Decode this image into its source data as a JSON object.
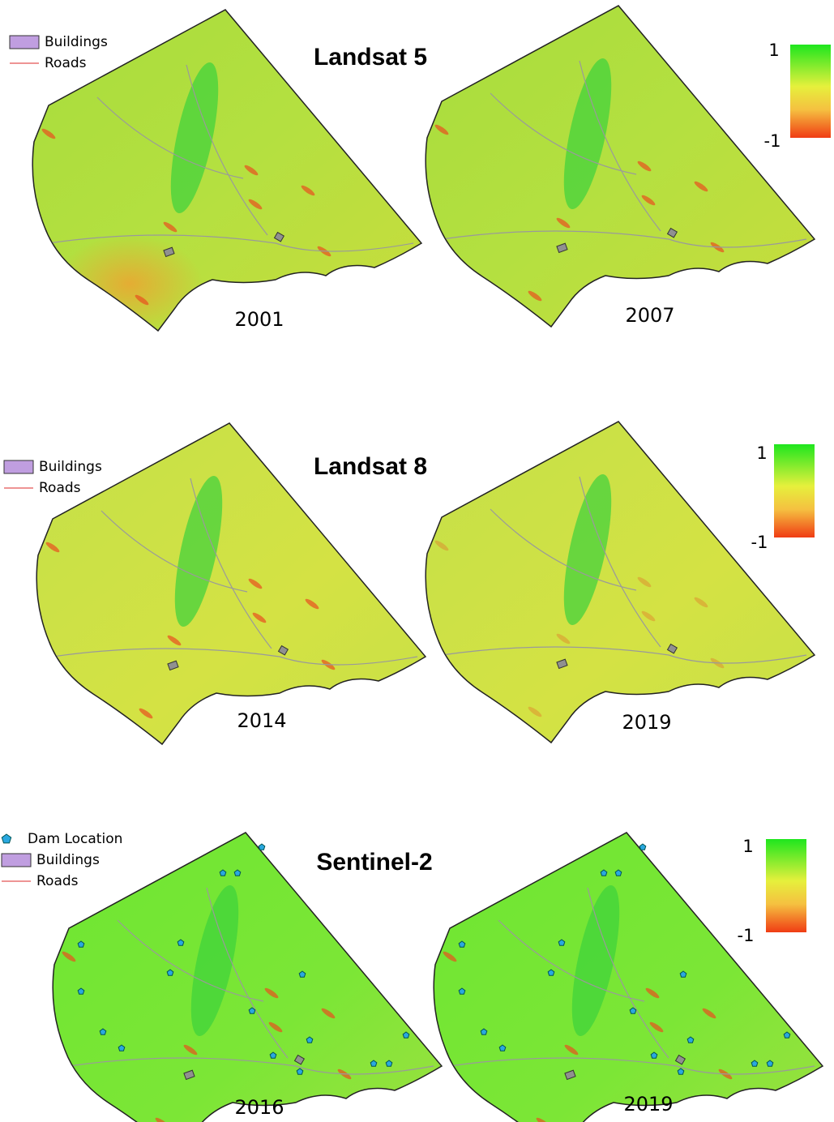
{
  "panels": [
    {
      "title": "Landsat 5",
      "legend": [
        "Buildings",
        "Roads"
      ],
      "colorbar": {
        "max": "1",
        "min": "-1"
      },
      "maps": [
        {
          "year": "2001"
        },
        {
          "year": "2007"
        }
      ]
    },
    {
      "title": "Landsat 8",
      "legend": [
        "Buildings",
        "Roads"
      ],
      "colorbar": {
        "max": "1",
        "min": "-1"
      },
      "maps": [
        {
          "year": "2014"
        },
        {
          "year": "2019"
        }
      ]
    },
    {
      "title": "Sentinel-2",
      "legend": [
        "Dam Location",
        "Buildings",
        "Roads"
      ],
      "colorbar": {
        "max": "1",
        "min": "-1"
      },
      "maps": [
        {
          "year": "2016"
        },
        {
          "year": "2019"
        }
      ]
    }
  ]
}
